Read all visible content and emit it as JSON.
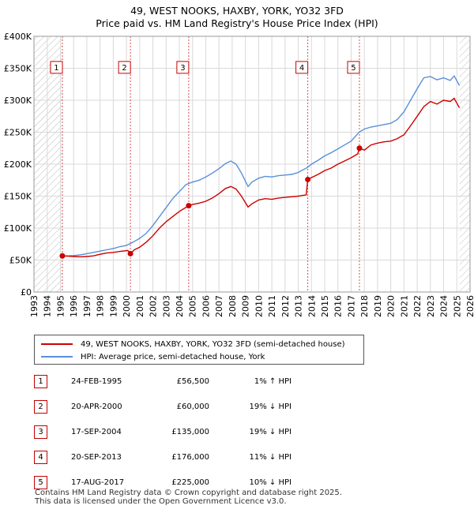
{
  "title": "49, WEST NOOKS, HAXBY, YORK, YO32 3FD",
  "subtitle": "Price paid vs. HM Land Registry's House Price Index (HPI)",
  "chart_data": {
    "type": "line",
    "xlim": [
      1993,
      2026
    ],
    "ylim": [
      0,
      400000
    ],
    "x_ticks": [
      1993,
      1994,
      1995,
      1996,
      1997,
      1998,
      1999,
      2000,
      2001,
      2002,
      2003,
      2004,
      2005,
      2006,
      2007,
      2008,
      2009,
      2010,
      2011,
      2012,
      2013,
      2014,
      2015,
      2016,
      2017,
      2018,
      2019,
      2020,
      2021,
      2022,
      2023,
      2024,
      2025,
      2026
    ],
    "y_ticks": [
      {
        "value": 0,
        "label": "£0"
      },
      {
        "value": 50000,
        "label": "£50K"
      },
      {
        "value": 100000,
        "label": "£100K"
      },
      {
        "value": 150000,
        "label": "£150K"
      },
      {
        "value": 200000,
        "label": "£200K"
      },
      {
        "value": 250000,
        "label": "£250K"
      },
      {
        "value": 300000,
        "label": "£300K"
      },
      {
        "value": 350000,
        "label": "£350K"
      },
      {
        "value": 400000,
        "label": "£400K"
      }
    ],
    "series": [
      {
        "name": "49, WEST NOOKS, HAXBY, YORK, YO32 3FD (semi-detached house)",
        "color": "#cc0000",
        "points": [
          [
            1995.15,
            56500
          ],
          [
            1995.6,
            56000
          ],
          [
            1996,
            55500
          ],
          [
            1996.5,
            55000
          ],
          [
            1997,
            55500
          ],
          [
            1997.5,
            56500
          ],
          [
            1998,
            59000
          ],
          [
            1998.5,
            61000
          ],
          [
            1999,
            62000
          ],
          [
            1999.5,
            63500
          ],
          [
            2000.1,
            65000
          ],
          [
            2000.3,
            60000
          ],
          [
            2000.6,
            66000
          ],
          [
            2001,
            70000
          ],
          [
            2001.5,
            78000
          ],
          [
            2002,
            88000
          ],
          [
            2002.5,
            100000
          ],
          [
            2003,
            110000
          ],
          [
            2003.5,
            118000
          ],
          [
            2004,
            126000
          ],
          [
            2004.7,
            135000
          ],
          [
            2005,
            137000
          ],
          [
            2005.5,
            139000
          ],
          [
            2006,
            142000
          ],
          [
            2006.5,
            147000
          ],
          [
            2007,
            154000
          ],
          [
            2007.5,
            162000
          ],
          [
            2007.9,
            165000
          ],
          [
            2008.3,
            161000
          ],
          [
            2008.7,
            150000
          ],
          [
            2009.2,
            133000
          ],
          [
            2009.5,
            138000
          ],
          [
            2010,
            144000
          ],
          [
            2010.5,
            146000
          ],
          [
            2011,
            145000
          ],
          [
            2011.5,
            147000
          ],
          [
            2012,
            148000
          ],
          [
            2012.5,
            149000
          ],
          [
            2013,
            150000
          ],
          [
            2013.6,
            152000
          ],
          [
            2013.72,
            176000
          ],
          [
            2014,
            179000
          ],
          [
            2014.5,
            184000
          ],
          [
            2015,
            190000
          ],
          [
            2015.5,
            194000
          ],
          [
            2016,
            200000
          ],
          [
            2016.5,
            205000
          ],
          [
            2017,
            210000
          ],
          [
            2017.5,
            216000
          ],
          [
            2017.63,
            225000
          ],
          [
            2018,
            222000
          ],
          [
            2018.5,
            230000
          ],
          [
            2019,
            233000
          ],
          [
            2019.5,
            235000
          ],
          [
            2020,
            236000
          ],
          [
            2020.5,
            240000
          ],
          [
            2021,
            246000
          ],
          [
            2021.5,
            260000
          ],
          [
            2022,
            275000
          ],
          [
            2022.5,
            290000
          ],
          [
            2023,
            298000
          ],
          [
            2023.5,
            294000
          ],
          [
            2024,
            300000
          ],
          [
            2024.5,
            298000
          ],
          [
            2024.8,
            303000
          ],
          [
            2025.2,
            288000
          ]
        ]
      },
      {
        "name": "HPI: Average price, semi-detached house, York",
        "color": "#5a8fd8",
        "points": [
          [
            1995,
            55500
          ],
          [
            1995.6,
            56500
          ],
          [
            1996,
            57000
          ],
          [
            1996.5,
            58000
          ],
          [
            1997,
            60000
          ],
          [
            1997.5,
            62000
          ],
          [
            1998,
            64000
          ],
          [
            1998.5,
            66000
          ],
          [
            1999,
            68000
          ],
          [
            1999.5,
            71000
          ],
          [
            2000,
            73000
          ],
          [
            2000.5,
            78000
          ],
          [
            2001,
            84000
          ],
          [
            2001.5,
            92000
          ],
          [
            2002,
            104000
          ],
          [
            2002.5,
            118000
          ],
          [
            2003,
            132000
          ],
          [
            2003.5,
            146000
          ],
          [
            2004,
            157000
          ],
          [
            2004.5,
            168000
          ],
          [
            2005,
            172000
          ],
          [
            2005.5,
            175000
          ],
          [
            2006,
            180000
          ],
          [
            2006.5,
            186000
          ],
          [
            2007,
            193000
          ],
          [
            2007.5,
            201000
          ],
          [
            2007.9,
            205000
          ],
          [
            2008.3,
            200000
          ],
          [
            2008.7,
            186000
          ],
          [
            2009.2,
            165000
          ],
          [
            2009.5,
            172000
          ],
          [
            2010,
            178000
          ],
          [
            2010.5,
            181000
          ],
          [
            2011,
            180000
          ],
          [
            2011.5,
            182000
          ],
          [
            2012,
            183000
          ],
          [
            2012.5,
            184000
          ],
          [
            2013,
            187000
          ],
          [
            2013.7,
            195000
          ],
          [
            2014,
            200000
          ],
          [
            2014.5,
            206000
          ],
          [
            2015,
            213000
          ],
          [
            2015.5,
            218000
          ],
          [
            2016,
            224000
          ],
          [
            2016.5,
            230000
          ],
          [
            2017,
            236000
          ],
          [
            2017.6,
            250000
          ],
          [
            2018,
            255000
          ],
          [
            2018.5,
            258000
          ],
          [
            2019,
            260000
          ],
          [
            2019.5,
            262000
          ],
          [
            2020,
            264000
          ],
          [
            2020.5,
            270000
          ],
          [
            2021,
            282000
          ],
          [
            2021.5,
            300000
          ],
          [
            2022,
            318000
          ],
          [
            2022.5,
            335000
          ],
          [
            2023,
            337000
          ],
          [
            2023.5,
            332000
          ],
          [
            2024,
            335000
          ],
          [
            2024.5,
            331000
          ],
          [
            2024.8,
            338000
          ],
          [
            2025.2,
            323000
          ]
        ]
      }
    ],
    "sales": [
      {
        "label": "1",
        "year": 1995.15,
        "price": 56500
      },
      {
        "label": "2",
        "year": 2000.3,
        "price": 60000
      },
      {
        "label": "3",
        "year": 2004.71,
        "price": 135000
      },
      {
        "label": "4",
        "year": 2013.72,
        "price": 176000
      },
      {
        "label": "5",
        "year": 2017.63,
        "price": 225000
      }
    ],
    "sale_label_y": 352000,
    "hatch_ranges": [
      [
        1993,
        1995.15
      ],
      [
        2025.2,
        2026
      ]
    ]
  },
  "legend": {
    "red": "49, WEST NOOKS, HAXBY, YORK, YO32 3FD (semi-detached house)",
    "blue": "HPI: Average price, semi-detached house, York"
  },
  "sales_table": [
    {
      "num": "1",
      "date": "24-FEB-1995",
      "price": "£56,500",
      "hpi": "1% ↑ HPI"
    },
    {
      "num": "2",
      "date": "20-APR-2000",
      "price": "£60,000",
      "hpi": "19% ↓ HPI"
    },
    {
      "num": "3",
      "date": "17-SEP-2004",
      "price": "£135,000",
      "hpi": "19% ↓ HPI"
    },
    {
      "num": "4",
      "date": "20-SEP-2013",
      "price": "£176,000",
      "hpi": "11% ↓ HPI"
    },
    {
      "num": "5",
      "date": "17-AUG-2017",
      "price": "£225,000",
      "hpi": "10% ↓ HPI"
    }
  ],
  "footer1": "Contains HM Land Registry data © Crown copyright and database right 2025.",
  "footer2": "This data is licensed under the Open Government Licence v3.0."
}
